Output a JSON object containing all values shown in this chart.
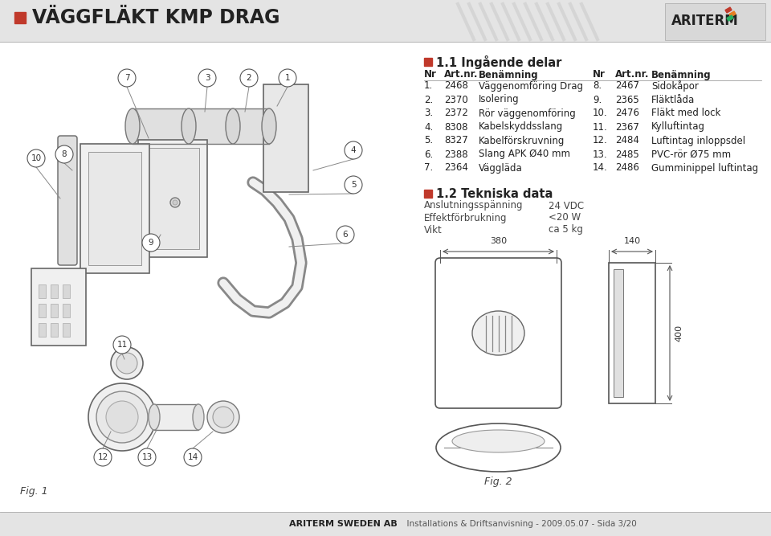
{
  "title": "VÄGGFLÄKT KMP DRAG",
  "red_square_color": "#c0392b",
  "section1_title": "1.1 Ingående delar",
  "section2_title": "1.2 Tekniska data",
  "table_headers": [
    "Nr",
    "Art.nr.",
    "Benämning",
    "Nr",
    "Art.nr.",
    "Benämning"
  ],
  "table_rows_left": [
    [
      "1.",
      "2468",
      "Väggenomföring Drag"
    ],
    [
      "2.",
      "2370",
      "Isolering"
    ],
    [
      "3.",
      "2372",
      "Rör väggenomföring"
    ],
    [
      "4.",
      "8308",
      "Kabelskyddsslang"
    ],
    [
      "5.",
      "8327",
      "Kabelförskruvning"
    ],
    [
      "6.",
      "2388",
      "Slang APK Ø40 mm"
    ],
    [
      "7.",
      "2364",
      "Väggläda"
    ]
  ],
  "table_rows_right": [
    [
      "8.",
      "2467",
      "Sidokåpor"
    ],
    [
      "9.",
      "2365",
      "Fläktlåda"
    ],
    [
      "10.",
      "2476",
      "Fläkt med lock"
    ],
    [
      "11.",
      "2367",
      "Kylluftintag"
    ],
    [
      "12.",
      "2484",
      "Luftintag inloppsdel"
    ],
    [
      "13.",
      "2485",
      "PVC-rör Ø75 mm"
    ],
    [
      "14.",
      "2486",
      "Gumminippel luftintag"
    ]
  ],
  "tech_data": [
    [
      "Anslutningsspänning",
      "24 VDC"
    ],
    [
      "Effektförbrukning",
      "<20 W"
    ],
    [
      "Vikt",
      "ca 5 kg"
    ]
  ],
  "footer_company": "ARITERM SWEDEN AB",
  "footer_info": "Installations & Driftsanvisning - 2009.05.07 - Sida 3/20",
  "fig1_label": "Fig. 1",
  "fig2_label": "Fig. 2",
  "dim1": "380",
  "dim2": "140",
  "dim3": "400",
  "title_fontsize": 17,
  "body_fontsize": 8.5,
  "section_fontsize": 10.5
}
